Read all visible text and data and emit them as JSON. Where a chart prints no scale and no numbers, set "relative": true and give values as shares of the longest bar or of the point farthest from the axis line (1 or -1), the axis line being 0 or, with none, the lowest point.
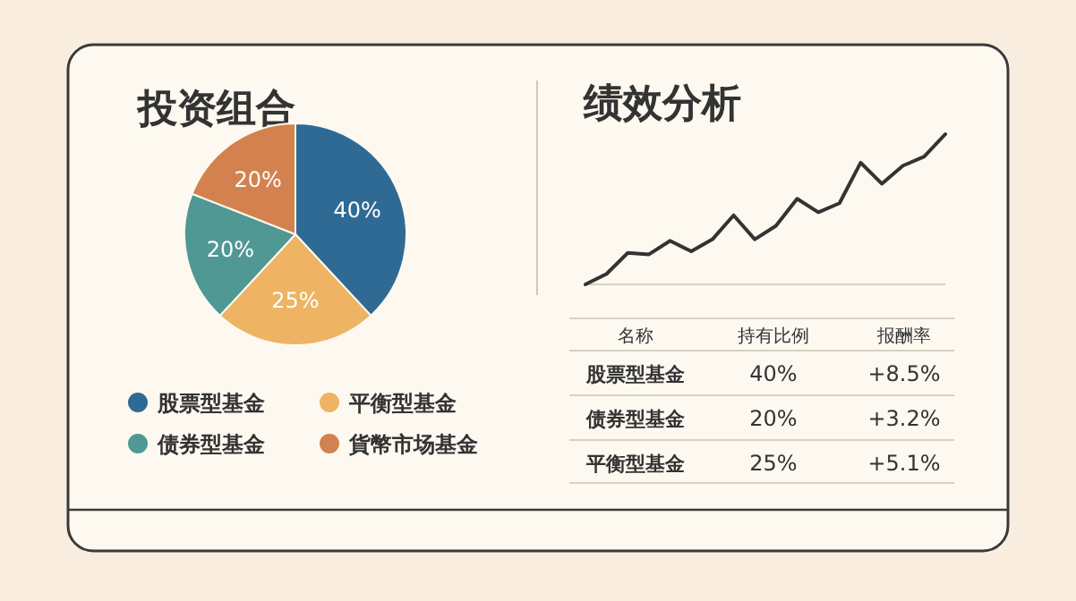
{
  "chart_data": [
    {
      "type": "pie",
      "title": "投资组合",
      "categories": [
        "股票型基金",
        "平衡型基金",
        "债券型基金",
        "貨幣市场基金"
      ],
      "values": [
        40,
        25,
        20,
        20
      ],
      "value_labels": [
        "40%",
        "25%",
        "20%",
        "20%"
      ],
      "colors": [
        "#2f6a95",
        "#eeb463",
        "#4f9894",
        "#d3824f"
      ],
      "legend": "bottom"
    },
    {
      "type": "line",
      "title": "绩效分析",
      "relative": true,
      "categories": [
        null,
        null,
        null,
        null,
        null,
        null,
        null,
        null,
        null,
        null,
        null,
        null,
        null,
        null,
        null,
        null,
        null,
        null
      ],
      "series": [
        {
          "color": "#333333",
          "values": [
            0,
            0.07,
            0.21,
            0.2,
            0.29,
            0.22,
            0.3,
            0.46,
            0.3,
            0.39,
            0.57,
            0.48,
            0.54,
            0.81,
            0.67,
            0.79,
            0.85,
            1
          ]
        }
      ]
    },
    {
      "type": "other",
      "annotations": [
        "名称",
        "持有比例",
        "报酬率",
        "股票型基金",
        "40%",
        "+8.5%",
        "债券型基金",
        "20%",
        "+3.2%",
        "平衡型基金",
        "25%",
        "+5.1%"
      ]
    }
  ]
}
